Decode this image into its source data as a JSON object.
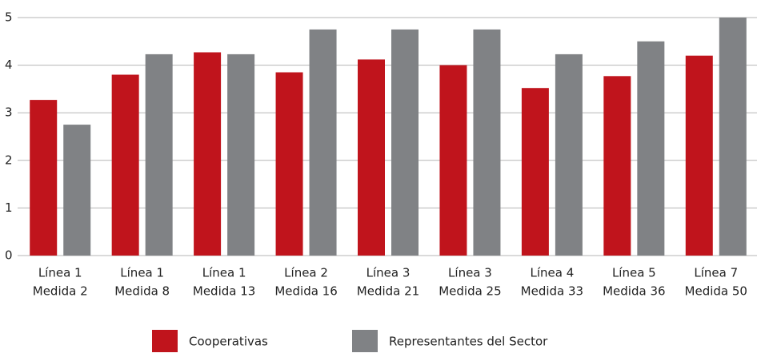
{
  "chart_data": {
    "type": "bar",
    "categories": [
      [
        "Línea 1",
        "Medida 2"
      ],
      [
        "Línea 1",
        "Medida 8"
      ],
      [
        "Línea 1",
        "Medida 13"
      ],
      [
        "Línea 2",
        "Medida 16"
      ],
      [
        "Línea 3",
        "Medida 21"
      ],
      [
        "Línea 3",
        "Medida 25"
      ],
      [
        "Línea 4",
        "Medida 33"
      ],
      [
        "Línea 5",
        "Medida 36"
      ],
      [
        "Línea 7",
        "Medida 50"
      ]
    ],
    "series": [
      {
        "name": "Cooperativas",
        "color": "#c0141c",
        "values": [
          3.27,
          3.8,
          4.27,
          3.85,
          4.12,
          4.0,
          3.52,
          3.77,
          4.2
        ]
      },
      {
        "name": "Representantes del Sector",
        "color": "#808285",
        "values": [
          2.75,
          4.23,
          4.23,
          4.75,
          4.75,
          4.75,
          4.23,
          4.5,
          5.0
        ]
      }
    ],
    "ylim": [
      0,
      5
    ],
    "yticks": [
      0,
      1,
      2,
      3,
      4,
      5
    ],
    "grid": true,
    "legend": "bottom"
  }
}
